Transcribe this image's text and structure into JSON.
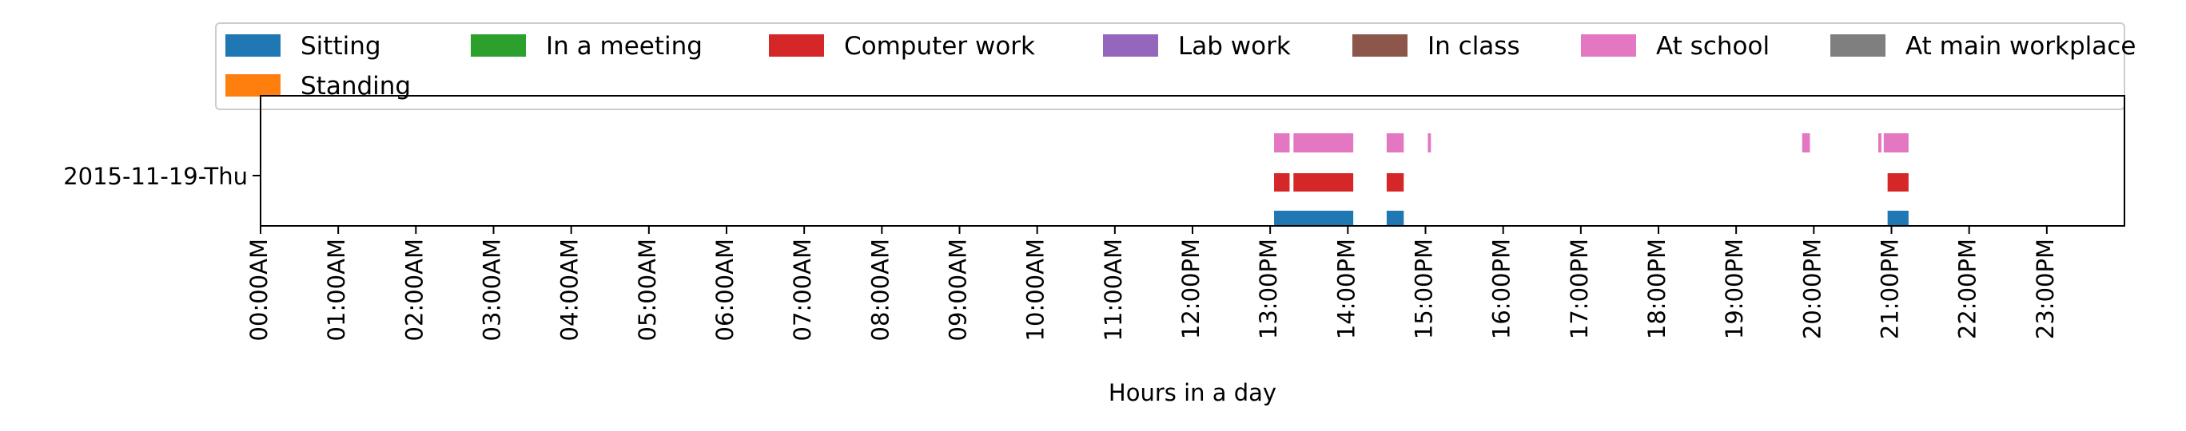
{
  "chart_data": {
    "type": "bar",
    "xlabel": "Hours in a day",
    "ylabel": "",
    "xlim": [
      0,
      24
    ],
    "row_label": "2015-11-19-Thu",
    "x_ticks": [
      "00:00AM",
      "01:00AM",
      "02:00AM",
      "03:00AM",
      "04:00AM",
      "05:00AM",
      "06:00AM",
      "07:00AM",
      "08:00AM",
      "09:00AM",
      "10:00AM",
      "11:00AM",
      "12:00PM",
      "13:00PM",
      "14:00PM",
      "15:00PM",
      "16:00PM",
      "17:00PM",
      "18:00PM",
      "19:00PM",
      "20:00PM",
      "21:00PM",
      "22:00PM",
      "23:00PM"
    ],
    "legend": [
      "Sitting",
      "In a meeting",
      "Computer work",
      "Lab work",
      "In class",
      "At school",
      "At main workplace",
      "Standing"
    ],
    "legend_location": "top",
    "colors": {
      "Sitting": "#1f77b4",
      "In a meeting": "#2ca02c",
      "Computer work": "#d62728",
      "Lab work": "#9467bd",
      "In class": "#8c564b",
      "At school": "#e377c2",
      "At main workplace": "#7f7f7f",
      "Standing": "#ff7f0e"
    },
    "series": [
      {
        "name": "Sitting",
        "intervals": [
          [
            13.05,
            14.07
          ],
          [
            14.5,
            14.72
          ],
          [
            20.95,
            21.22
          ]
        ]
      },
      {
        "name": "Computer work",
        "intervals": [
          [
            13.05,
            13.25
          ],
          [
            13.3,
            14.07
          ],
          [
            14.5,
            14.72
          ],
          [
            20.95,
            21.22
          ]
        ]
      },
      {
        "name": "At school",
        "intervals": [
          [
            13.05,
            13.25
          ],
          [
            13.3,
            14.07
          ],
          [
            14.5,
            14.72
          ],
          [
            15.03,
            15.07
          ],
          [
            19.85,
            19.95
          ],
          [
            20.83,
            20.87
          ],
          [
            20.9,
            21.22
          ]
        ]
      }
    ]
  }
}
